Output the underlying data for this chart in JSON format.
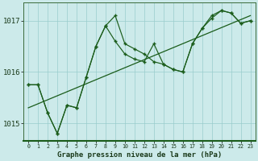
{
  "title": "Graphe pression niveau de la mer (hPa)",
  "background_color": "#cceaea",
  "line_color": "#1a5c1a",
  "grid_color": "#99cccc",
  "xlim": [
    -0.5,
    23.5
  ],
  "ylim": [
    1014.65,
    1017.35
  ],
  "yticks": [
    1015,
    1016,
    1017
  ],
  "xticks": [
    0,
    1,
    2,
    3,
    4,
    5,
    6,
    7,
    8,
    9,
    10,
    11,
    12,
    13,
    14,
    15,
    16,
    17,
    18,
    19,
    20,
    21,
    22,
    23
  ],
  "series1_x": [
    0,
    1,
    2,
    3,
    4,
    5,
    6,
    7,
    8,
    9,
    10,
    11,
    12,
    13,
    14,
    15,
    16,
    17,
    18,
    19,
    20,
    21,
    22,
    23
  ],
  "series1_y": [
    1015.75,
    1015.75,
    1015.2,
    1014.8,
    1015.35,
    1015.3,
    1015.9,
    1016.5,
    1016.9,
    1017.1,
    1016.55,
    1016.45,
    1016.35,
    1016.2,
    1016.15,
    1016.05,
    1016.0,
    1016.55,
    1016.85,
    1017.1,
    1017.2,
    1017.15,
    1016.95,
    1017.0
  ],
  "series2_x": [
    0,
    1,
    2,
    3,
    4,
    5,
    6,
    7,
    8,
    9,
    10,
    11,
    12,
    13,
    14,
    15,
    16,
    17,
    18,
    19,
    20,
    21,
    22,
    23
  ],
  "series2_y": [
    1015.75,
    1015.75,
    1015.2,
    1014.8,
    1015.35,
    1015.3,
    1015.9,
    1016.5,
    1016.9,
    1016.6,
    1016.35,
    1016.25,
    1016.2,
    1016.55,
    1016.15,
    1016.05,
    1016.0,
    1016.55,
    1016.85,
    1017.05,
    1017.2,
    1017.15,
    1016.95,
    1017.0
  ],
  "trend_x": [
    0,
    23
  ],
  "trend_y": [
    1015.3,
    1017.1
  ],
  "figwidth": 3.2,
  "figheight": 2.0,
  "dpi": 100
}
